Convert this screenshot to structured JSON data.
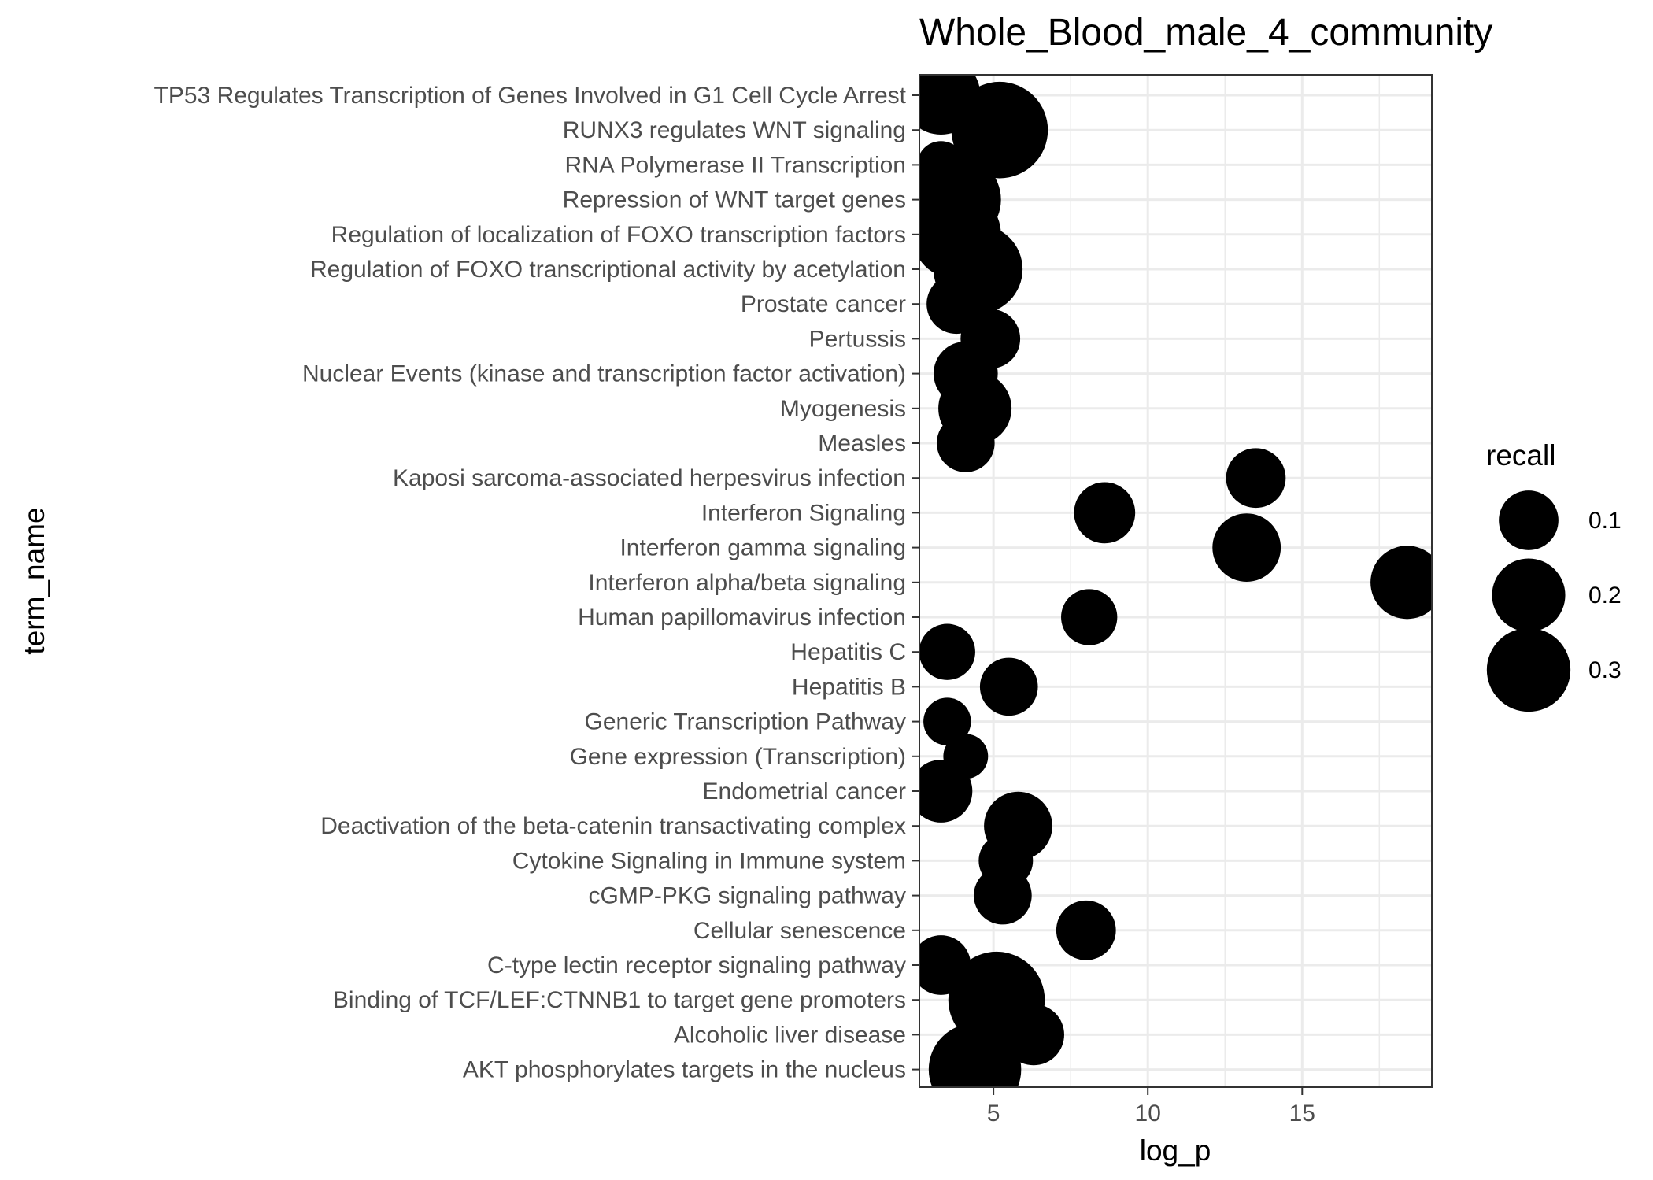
{
  "chart_data": {
    "type": "scatter",
    "title": "Whole_Blood_male_4_community",
    "xlabel": "log_p",
    "ylabel": "term_name",
    "xlim": [
      2.6,
      19.2
    ],
    "xticks": [
      5,
      10,
      15
    ],
    "grid": true,
    "size_variable": "recall",
    "legend": {
      "title": "recall",
      "position": "right",
      "breaks": [
        {
          "label": "0.1",
          "value": 0.1
        },
        {
          "label": "0.2",
          "value": 0.2
        },
        {
          "label": "0.3",
          "value": 0.3
        }
      ]
    },
    "categories": [
      "TP53 Regulates Transcription of Genes Involved in G1 Cell Cycle Arrest",
      "RUNX3 regulates WNT signaling",
      "RNA Polymerase II Transcription",
      "Repression of WNT target genes",
      "Regulation of localization of FOXO transcription factors",
      "Regulation of FOXO transcriptional activity by acetylation",
      "Prostate cancer",
      "Pertussis",
      "Nuclear Events (kinase and transcription factor activation)",
      "Myogenesis",
      "Measles",
      "Kaposi sarcoma-associated herpesvirus infection",
      "Interferon Signaling",
      "Interferon gamma signaling",
      "Interferon alpha/beta signaling",
      "Human papillomavirus infection",
      "Hepatitis C",
      "Hepatitis B",
      "Generic Transcription Pathway",
      "Gene expression (Transcription)",
      "Endometrial cancer",
      "Deactivation of the beta-catenin transactivating complex",
      "Cytokine Signaling in Immune system",
      "cGMP-PKG signaling pathway",
      "Cellular senescence",
      "C-type lectin receptor signaling pathway",
      "Binding of TCF/LEF:CTNNB1 to target gene promoters",
      "Alcoholic liver disease",
      "AKT phosphorylates targets in the nucleus"
    ],
    "points": [
      {
        "term": "TP53 Regulates Transcription of Genes Involved in G1 Cell Cycle Arrest",
        "log_p": 3.3,
        "recall": 0.25
      },
      {
        "term": "RUNX3 regulates WNT signaling",
        "log_p": 5.2,
        "recall": 0.45
      },
      {
        "term": "RNA Polymerase II Transcription",
        "log_p": 3.3,
        "recall": 0.04
      },
      {
        "term": "Repression of WNT target genes",
        "log_p": 3.8,
        "recall": 0.36
      },
      {
        "term": "Regulation of localization of FOXO transcription factors",
        "log_p": 3.8,
        "recall": 0.36
      },
      {
        "term": "Regulation of FOXO transcriptional activity by acetylation",
        "log_p": 4.5,
        "recall": 0.36
      },
      {
        "term": "Prostate cancer",
        "log_p": 3.8,
        "recall": 0.1
      },
      {
        "term": "Pertussis",
        "log_p": 4.9,
        "recall": 0.1
      },
      {
        "term": "Nuclear Events (kinase and transcription factor activation)",
        "log_p": 4.1,
        "recall": 0.13
      },
      {
        "term": "Myogenesis",
        "log_p": 4.4,
        "recall": 0.2
      },
      {
        "term": "Measles",
        "log_p": 4.1,
        "recall": 0.09
      },
      {
        "term": "Kaposi sarcoma-associated herpesvirus infection",
        "log_p": 13.5,
        "recall": 0.1
      },
      {
        "term": "Interferon Signaling",
        "log_p": 8.6,
        "recall": 0.11
      },
      {
        "term": "Interferon gamma signaling",
        "log_p": 13.2,
        "recall": 0.16
      },
      {
        "term": "Interferon alpha/beta signaling",
        "log_p": 18.4,
        "recall": 0.2
      },
      {
        "term": "Human papillomavirus infection",
        "log_p": 8.1,
        "recall": 0.08
      },
      {
        "term": "Hepatitis C",
        "log_p": 3.5,
        "recall": 0.08
      },
      {
        "term": "Hepatitis B",
        "log_p": 5.5,
        "recall": 0.09
      },
      {
        "term": "Generic Transcription Pathway",
        "log_p": 3.5,
        "recall": 0.04
      },
      {
        "term": "Gene expression (Transcription)",
        "log_p": 4.1,
        "recall": 0.03
      },
      {
        "term": "Endometrial cancer",
        "log_p": 3.3,
        "recall": 0.12
      },
      {
        "term": "Deactivation of the beta-catenin transactivating complex",
        "log_p": 5.8,
        "recall": 0.16
      },
      {
        "term": "Cytokine Signaling in Immune system",
        "log_p": 5.4,
        "recall": 0.07
      },
      {
        "term": "cGMP-PKG signaling pathway",
        "log_p": 5.3,
        "recall": 0.09
      },
      {
        "term": "Cellular senescence",
        "log_p": 8.0,
        "recall": 0.1
      },
      {
        "term": "C-type lectin receptor signaling pathway",
        "log_p": 3.3,
        "recall": 0.1
      },
      {
        "term": "Binding of TCF/LEF:CTNNB1 to target gene promoters",
        "log_p": 5.1,
        "recall": 0.45
      },
      {
        "term": "Alcoholic liver disease",
        "log_p": 6.3,
        "recall": 0.11
      },
      {
        "term": "AKT phosphorylates targets in the nucleus",
        "log_p": 4.4,
        "recall": 0.4
      }
    ],
    "marker_color": "#000000",
    "panel_border_color": "#333333",
    "grid_color": "#ebebeb"
  }
}
